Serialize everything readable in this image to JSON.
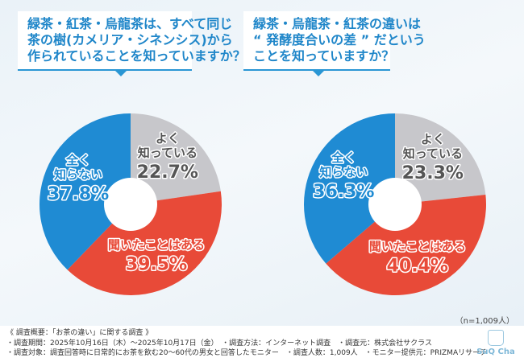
{
  "questions": [
    {
      "lines": [
        "緑茶・紅茶・烏龍茶は、すべて同じ",
        "茶の樹(カメリア・シネンシス)から",
        "作られていることを知っていますか？"
      ]
    },
    {
      "lines": [
        "緑茶・烏龍茶・紅茶の違いは",
        "“ 発酵度合いの差 ” だという",
        "ことを知っていますか？"
      ]
    }
  ],
  "chart_data": [
    {
      "type": "pie",
      "donut": true,
      "categories": [
        "よく知っている",
        "聞いたことはある",
        "全く知らない"
      ],
      "values": [
        22.7,
        39.5,
        37.8
      ],
      "labels": [
        [
          "よく",
          "知っている"
        ],
        [
          "聞いたことはある"
        ],
        [
          "全く",
          "知らない"
        ]
      ],
      "value_labels": [
        "22.7%",
        "39.5%",
        "37.8%"
      ]
    },
    {
      "type": "pie",
      "donut": true,
      "categories": [
        "よく知っている",
        "聞いたことはある",
        "全く知らない"
      ],
      "values": [
        23.3,
        40.4,
        36.3
      ],
      "labels": [
        [
          "よく",
          "知っている"
        ],
        [
          "聞いたことはある"
        ],
        [
          "全く",
          "知らない"
        ]
      ],
      "value_labels": [
        "23.3%",
        "40.4%",
        "36.3%"
      ]
    }
  ],
  "colors": {
    "よく知っている": "#c7c7cb",
    "聞いたことはある": "#e84a38",
    "全く知らない": "#1f8bd3",
    "text_gray": "#555555",
    "accent": "#2a96d4"
  },
  "sample": "（n=1,009人）",
  "footer": {
    "lines": [
      "《 調査概要：「お茶の違い」に関する調査 》",
      "・調査期間：2025年10月16日（木）～2025年10月17日（金）　・調査方法：インターネット調査　・調査元：株式会社サクラス",
      "・調査対象：調査回答時に日常的にお茶を飲む20～60代の男女と回答したモニター　・調査人数：1,009人　・モニター提供元：PRIZMAリサーチ"
    ],
    "logo": "SuQ Cha"
  }
}
